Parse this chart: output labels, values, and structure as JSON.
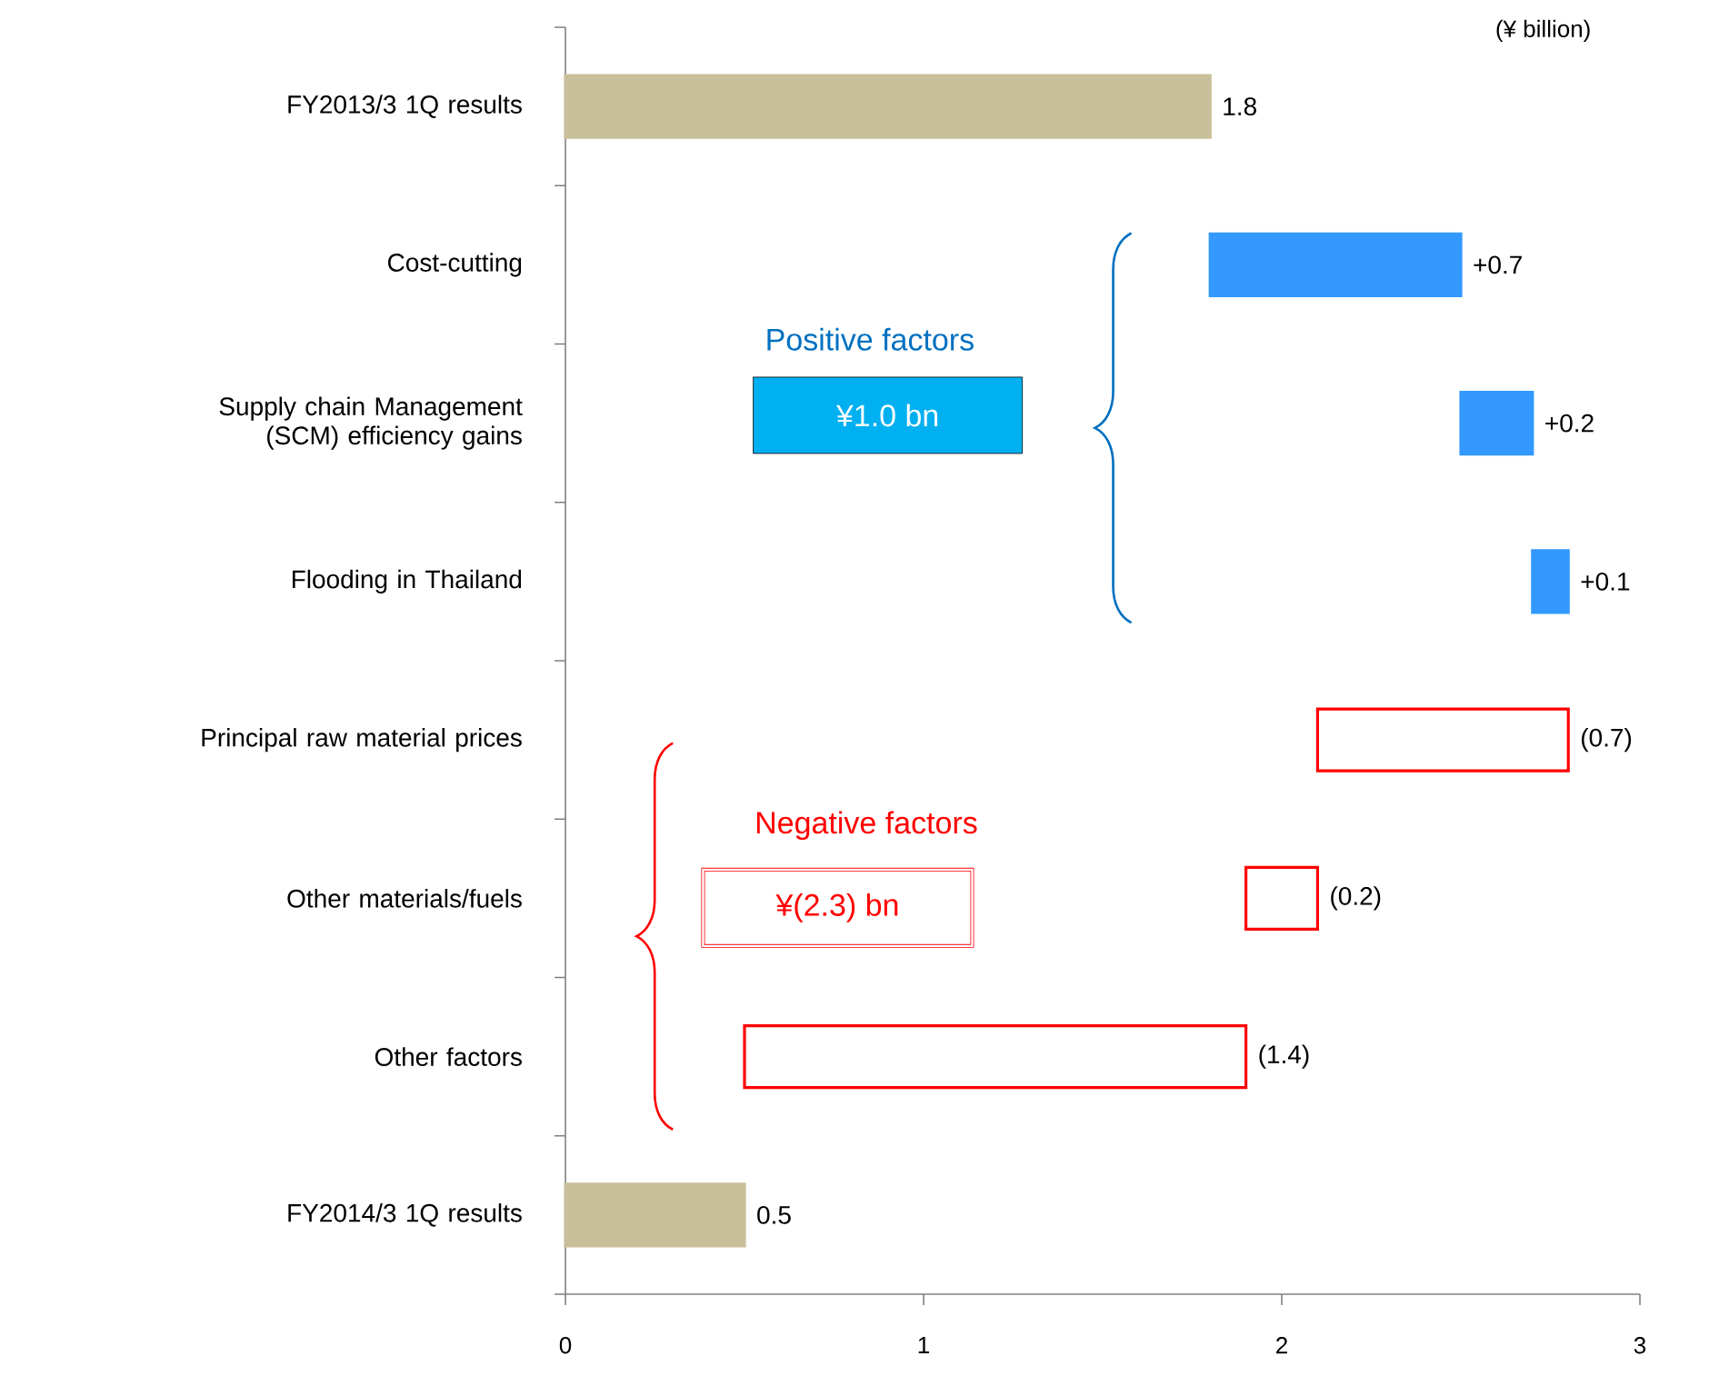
{
  "chart_data": {
    "type": "bar",
    "orientation": "horizontal",
    "categories": [
      "FY2013/3 1Q results",
      "Cost-cutting",
      "Supply chain Management (SCM) efficiency gains",
      "Flooding in Thailand",
      "Principal raw material prices",
      "Other materials/fuels",
      "Other factors",
      "FY2014/3 1Q results"
    ],
    "values": [
      1.8,
      0.7,
      0.2,
      0.1,
      -0.7,
      -0.2,
      -1.4,
      0.5
    ],
    "base": [
      0,
      1.8,
      2.5,
      2.7,
      2.8,
      2.1,
      1.9,
      0
    ],
    "colors": [
      "#c8bf9b",
      "#3399ff",
      "#3399ff",
      "#3399ff",
      "#ff0000",
      "#ff0000",
      "#ff0000",
      "#c8bf9b"
    ],
    "value_labels": [
      "1.8",
      "+0.7",
      "+0.2",
      "+0.1",
      "(0.7)",
      "(0.2)",
      "(1.4)",
      "0.5"
    ],
    "xlim": [
      0,
      3
    ],
    "xticks": [
      0,
      1,
      2,
      3
    ],
    "annotations": [
      "(¥ billion)",
      "Positive factors",
      "¥1.0 bn",
      "Negative factors",
      "¥(2.3) bn"
    ]
  }
}
